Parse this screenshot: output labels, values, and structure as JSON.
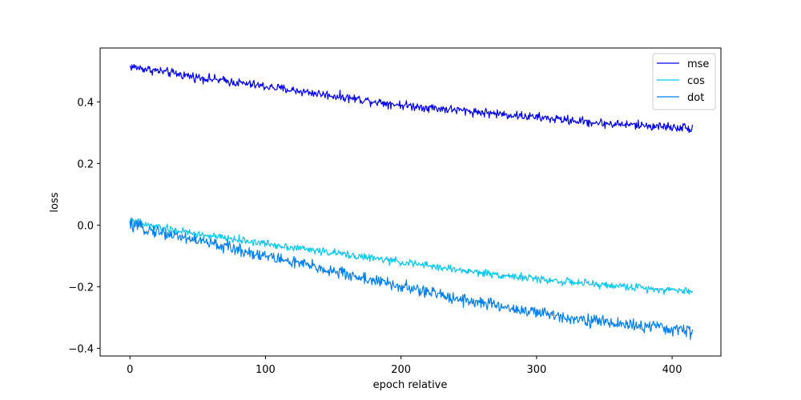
{
  "chart_data": {
    "type": "line",
    "title": "",
    "xlabel": "epoch relative",
    "ylabel": "loss",
    "xlim": [
      -22,
      436
    ],
    "ylim": [
      -0.425,
      0.575
    ],
    "x_ticks": [
      0,
      100,
      200,
      300,
      400
    ],
    "y_ticks": [
      -0.4,
      -0.2,
      0.0,
      0.2,
      0.4
    ],
    "x_tick_labels": [
      "0",
      "100",
      "200",
      "300",
      "400"
    ],
    "y_tick_labels": [
      "−0.4",
      "−0.2",
      "0.0",
      "0.2",
      "0.4"
    ],
    "grid": false,
    "legend_position": "top-right",
    "x_range": [
      0,
      415
    ],
    "series": [
      {
        "name": "mse",
        "color": "#0000ee",
        "x": [
          0,
          50,
          100,
          150,
          200,
          250,
          300,
          350,
          415
        ],
        "y": [
          0.515,
          0.48,
          0.45,
          0.42,
          0.39,
          0.37,
          0.35,
          0.33,
          0.315
        ],
        "noise": 0.012
      },
      {
        "name": "cos",
        "color": "#00c8f0",
        "x": [
          0,
          50,
          100,
          150,
          200,
          250,
          300,
          350,
          415
        ],
        "y": [
          0.01,
          -0.03,
          -0.06,
          -0.09,
          -0.12,
          -0.15,
          -0.175,
          -0.195,
          -0.215
        ],
        "noise": 0.01
      },
      {
        "name": "dot",
        "color": "#0080f0",
        "x": [
          0,
          50,
          100,
          150,
          200,
          250,
          300,
          350,
          415
        ],
        "y": [
          0.0,
          -0.05,
          -0.1,
          -0.15,
          -0.2,
          -0.245,
          -0.285,
          -0.315,
          -0.345
        ],
        "noise": 0.017
      }
    ]
  }
}
